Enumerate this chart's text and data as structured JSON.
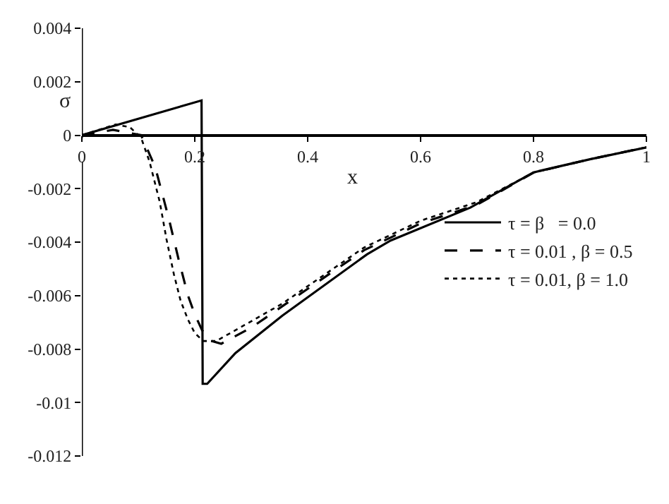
{
  "chart_data": {
    "type": "line",
    "xlabel": "x",
    "ylabel": "σ",
    "xlim": [
      0,
      1
    ],
    "xticks": [
      0,
      0.2,
      0.4,
      0.6,
      0.8,
      1
    ],
    "ylim": [
      -0.012,
      0.004
    ],
    "yticks": [
      -0.012,
      -0.01,
      -0.008,
      -0.006,
      -0.004,
      -0.002,
      0,
      0.002,
      0.004
    ],
    "legend": "right",
    "marker": "none",
    "series": [
      {
        "name": "τ = β   = 0.0",
        "color": "#000000",
        "line_style": "solid",
        "x": [
          0,
          0.212,
          0.214,
          0.222,
          0.272,
          0.355,
          0.505,
          0.547,
          0.688,
          0.8,
          0.9,
          1.0
        ],
        "values": [
          0,
          0.0013,
          -0.0093,
          -0.0093,
          -0.00815,
          -0.00675,
          -0.00446,
          -0.00394,
          -0.00271,
          -0.00139,
          -0.0009,
          -0.00046
        ]
      },
      {
        "name": "τ = 0.01 , β = 0.5",
        "color": "#000000",
        "line_style": "dashed",
        "x": [
          0,
          0.03,
          0.055,
          0.08,
          0.105,
          0.13,
          0.155,
          0.172,
          0.188,
          0.2,
          0.213,
          0.23,
          0.247,
          0.3,
          0.355,
          0.5,
          0.6,
          0.7,
          0.8,
          0.9,
          1.0
        ],
        "values": [
          0,
          0.0001,
          0.0002,
          0.0001,
          0,
          -0.0012,
          -0.0032,
          -0.0047,
          -0.006,
          -0.0067,
          -0.0073,
          -0.0077,
          -0.0078,
          -0.0072,
          -0.0064,
          -0.0043,
          -0.0033,
          -0.0026,
          -0.0014,
          -0.0009,
          -0.00045
        ]
      },
      {
        "name": "τ = 0.01, β = 1.0",
        "color": "#000000",
        "line_style": "dotted",
        "x": [
          0,
          0.03,
          0.06,
          0.085,
          0.105,
          0.12,
          0.138,
          0.15,
          0.163,
          0.175,
          0.188,
          0.2,
          0.215,
          0.238,
          0.28,
          0.355,
          0.5,
          0.6,
          0.7,
          0.8,
          0.9,
          1.0
        ],
        "values": [
          0,
          0.0002,
          0.0004,
          0.0003,
          -0.0001,
          -0.001,
          -0.0025,
          -0.0039,
          -0.0052,
          -0.0062,
          -0.0069,
          -0.0074,
          -0.0077,
          -0.0077,
          -0.0072,
          -0.0063,
          -0.0042,
          -0.0032,
          -0.0025,
          -0.0014,
          -0.0009,
          -0.00045
        ]
      }
    ]
  }
}
